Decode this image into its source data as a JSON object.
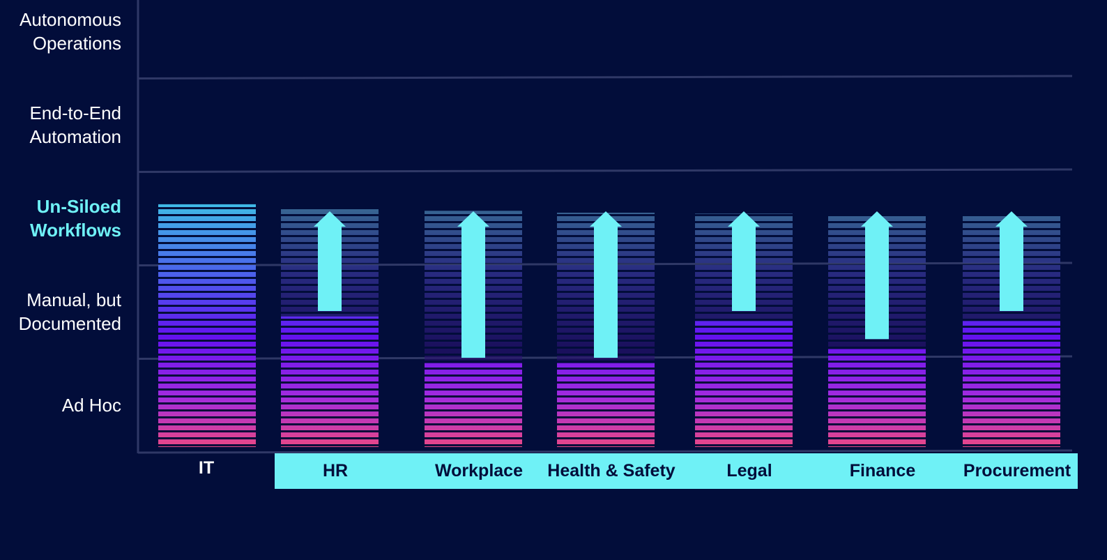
{
  "colors": {
    "background": "#020d3a",
    "gridline": "#2f3866",
    "axis_label": "#ffffff",
    "highlight_label": "#6ff1f6",
    "arrow": "#6ff1f6",
    "category_band": "#6ff1f6",
    "category_band_text": "#020d3a",
    "bar_gradient_top": "#3ec6e6",
    "bar_gradient_mid_upper": "#4b63ea",
    "bar_gradient_mid": "#6412f0",
    "bar_gradient_lower": "#a02ae0",
    "bar_gradient_bottom": "#ef4a7e"
  },
  "chart_data": {
    "type": "bar",
    "title": "",
    "xlabel": "",
    "ylabel": "",
    "levels": [
      {
        "label_lines": [
          "Ad Hoc"
        ],
        "value": 1,
        "highlight": false
      },
      {
        "label_lines": [
          "Manual, but",
          "Documented"
        ],
        "value": 2,
        "highlight": false
      },
      {
        "label_lines": [
          "Un-Siloed",
          "Workflows"
        ],
        "value": 3,
        "highlight": true
      },
      {
        "label_lines": [
          "End-to-End",
          "Automation"
        ],
        "value": 4,
        "highlight": false
      },
      {
        "label_lines": [
          "Autonomous",
          "Operations"
        ],
        "value": 5,
        "highlight": false
      }
    ],
    "ylim": [
      0,
      5
    ],
    "grid": true,
    "categories": [
      "IT",
      "HR",
      "Workplace",
      "Health & Safety",
      "Legal",
      "Finance",
      "Procurement"
    ],
    "highlighted_categories": [
      "HR",
      "Workplace",
      "Health & Safety",
      "Legal",
      "Finance",
      "Procurement"
    ],
    "current_level": [
      2.65,
      1.45,
      0.95,
      0.95,
      1.4,
      1.1,
      1.4
    ],
    "target_level": [
      2.65,
      2.6,
      2.58,
      2.56,
      2.55,
      2.54,
      2.53
    ],
    "arrow_from": [
      null,
      1.5,
      1.0,
      1.0,
      1.5,
      1.2,
      1.5
    ],
    "arrow_to": [
      null,
      2.5,
      2.5,
      2.5,
      2.5,
      2.5,
      2.5
    ]
  }
}
